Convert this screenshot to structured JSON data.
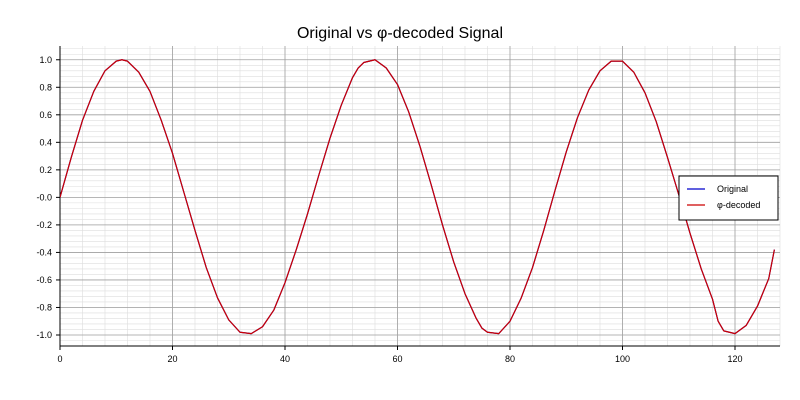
{
  "chart_data": {
    "type": "line",
    "title": "Original vs φ-decoded Signal",
    "xlabel": "",
    "ylabel": "",
    "xlim": [
      0,
      128
    ],
    "ylim": [
      -1.08,
      1.1
    ],
    "x_ticks": [
      0,
      20,
      40,
      60,
      80,
      100,
      120
    ],
    "y_ticks": [
      1.0,
      0.8,
      0.6,
      0.4,
      0.2,
      0.0,
      -0.2,
      -0.4,
      -0.6,
      -0.8,
      -1.0
    ],
    "y_tick_labels": [
      "1.0",
      "0.8",
      "0.6",
      "0.4",
      "0.2",
      "-0.0",
      "-0.2",
      "-0.4",
      "-0.6",
      "-0.8",
      "-1.0"
    ],
    "grid": "major and minor",
    "legend_position": "right",
    "series": [
      {
        "name": "Original",
        "color": "#0000cc",
        "x": [
          0,
          2,
          4,
          6,
          8,
          10,
          11,
          12,
          14,
          16,
          18,
          20,
          22,
          24,
          26,
          28,
          30,
          32,
          34,
          36,
          38,
          40,
          42,
          44,
          46,
          48,
          50,
          52,
          53,
          54,
          56,
          58,
          60,
          62,
          64,
          66,
          68,
          70,
          72,
          74,
          75,
          76,
          78,
          80,
          82,
          84,
          86,
          88,
          90,
          92,
          94,
          96,
          98,
          100,
          102,
          104,
          106,
          108,
          110,
          112,
          114,
          116,
          117,
          118,
          120,
          122,
          124,
          126,
          127
        ],
        "values": [
          0.0,
          0.29,
          0.56,
          0.77,
          0.92,
          0.99,
          1.0,
          0.99,
          0.91,
          0.77,
          0.56,
          0.32,
          0.04,
          -0.24,
          -0.51,
          -0.73,
          -0.89,
          -0.98,
          -0.99,
          -0.94,
          -0.82,
          -0.62,
          -0.38,
          -0.12,
          0.16,
          0.43,
          0.67,
          0.87,
          0.94,
          0.98,
          1.0,
          0.94,
          0.82,
          0.62,
          0.37,
          0.09,
          -0.2,
          -0.47,
          -0.7,
          -0.88,
          -0.95,
          -0.98,
          -0.99,
          -0.9,
          -0.73,
          -0.51,
          -0.24,
          0.05,
          0.33,
          0.58,
          0.78,
          0.92,
          0.99,
          0.99,
          0.91,
          0.76,
          0.55,
          0.29,
          0.02,
          -0.26,
          -0.52,
          -0.74,
          -0.9,
          -0.97,
          -0.99,
          -0.93,
          -0.79,
          -0.59,
          -0.38
        ]
      },
      {
        "name": "φ-decoded",
        "color": "#cc0000",
        "x": [
          0,
          2,
          4,
          6,
          8,
          10,
          11,
          12,
          14,
          16,
          18,
          20,
          22,
          24,
          26,
          28,
          30,
          32,
          34,
          36,
          38,
          40,
          42,
          44,
          46,
          48,
          50,
          52,
          53,
          54,
          56,
          58,
          60,
          62,
          64,
          66,
          68,
          70,
          72,
          74,
          75,
          76,
          78,
          80,
          82,
          84,
          86,
          88,
          90,
          92,
          94,
          96,
          98,
          100,
          102,
          104,
          106,
          108,
          110,
          112,
          114,
          116,
          117,
          118,
          120,
          122,
          124,
          126,
          127
        ],
        "values": [
          0.0,
          0.29,
          0.56,
          0.77,
          0.92,
          0.99,
          1.0,
          0.99,
          0.91,
          0.77,
          0.56,
          0.32,
          0.04,
          -0.24,
          -0.51,
          -0.73,
          -0.89,
          -0.98,
          -0.99,
          -0.94,
          -0.82,
          -0.62,
          -0.38,
          -0.12,
          0.16,
          0.43,
          0.67,
          0.87,
          0.94,
          0.98,
          1.0,
          0.94,
          0.82,
          0.62,
          0.37,
          0.09,
          -0.2,
          -0.47,
          -0.7,
          -0.88,
          -0.95,
          -0.98,
          -0.99,
          -0.9,
          -0.73,
          -0.51,
          -0.24,
          0.05,
          0.33,
          0.58,
          0.78,
          0.92,
          0.99,
          0.99,
          0.91,
          0.76,
          0.55,
          0.29,
          0.02,
          -0.26,
          -0.52,
          -0.74,
          -0.9,
          -0.97,
          -0.99,
          -0.93,
          -0.79,
          -0.59,
          -0.38
        ]
      }
    ]
  },
  "colors": {
    "background": "#ffffff",
    "major_grid": "#a0a0a0",
    "minor_grid": "#dddddd",
    "axis": "#000000"
  }
}
